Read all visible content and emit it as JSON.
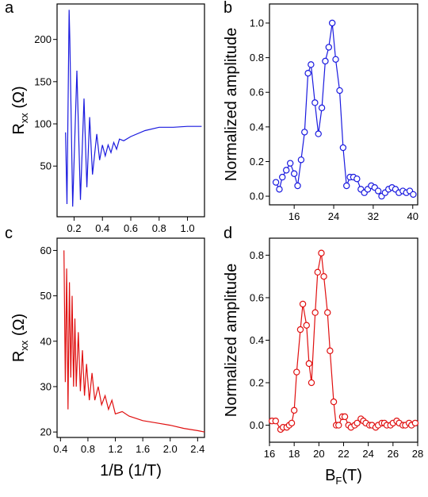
{
  "chart_data": [
    {
      "type": "line",
      "letter": "a",
      "ylabel": "R",
      "ylabel_sub": "xx",
      "ylabel_unit": " (Ω)",
      "color": "#1a1adf",
      "x": [
        0.14,
        0.15,
        0.165,
        0.17,
        0.19,
        0.22,
        0.245,
        0.27,
        0.29,
        0.31,
        0.33,
        0.36,
        0.38,
        0.4,
        0.42,
        0.44,
        0.46,
        0.48,
        0.5,
        0.52,
        0.55,
        0.6,
        0.7,
        0.8,
        0.9,
        1.0,
        1.1
      ],
      "values": [
        90,
        5,
        235,
        200,
        2,
        163,
        10,
        130,
        25,
        108,
        40,
        88,
        57,
        75,
        62,
        75,
        66,
        78,
        70,
        82,
        80,
        85,
        92,
        96,
        96,
        97,
        97
      ],
      "xlim": [
        0.08,
        1.12
      ],
      "ylim": [
        -10,
        242
      ],
      "xticks": [
        0.2,
        0.4,
        0.6,
        0.8,
        {
          "value": 1.0,
          "label": "1.0"
        }
      ],
      "yticks": [
        50,
        100,
        150,
        200
      ]
    },
    {
      "type": "line",
      "marker": "circle",
      "letter": "b",
      "ylabel": "Normalized amplitude",
      "color": "#1a1adf",
      "x": [
        12.3,
        13,
        13.6,
        14.4,
        15.2,
        16,
        16.7,
        17.4,
        18.1,
        18.8,
        19.4,
        20.2,
        20.9,
        21.6,
        22.3,
        23,
        23.7,
        24.4,
        25.2,
        25.9,
        26.6,
        27.3,
        28,
        28.7,
        29.5,
        30.2,
        30.9,
        31.6,
        32.3,
        33,
        33.7,
        34.4,
        35.1,
        35.8,
        36.5,
        37.2,
        38,
        38.7,
        39.4,
        40.1
      ],
      "values": [
        0.08,
        0.04,
        0.11,
        0.15,
        0.19,
        0.13,
        0.06,
        0.21,
        0.37,
        0.71,
        0.76,
        0.54,
        0.36,
        0.51,
        0.78,
        0.86,
        1.0,
        0.79,
        0.61,
        0.28,
        0.06,
        0.11,
        0.11,
        0.1,
        0.04,
        0.02,
        0.04,
        0.06,
        0.05,
        0.03,
        0.0,
        0.02,
        0.04,
        0.05,
        0.04,
        0.02,
        0.03,
        0.02,
        0.03,
        0.01
      ],
      "xlim": [
        11,
        41
      ],
      "ylim": [
        -0.05,
        1.11
      ],
      "xticks": [
        16,
        24,
        32,
        40
      ],
      "yticks": [
        {
          "value": 0.0,
          "label": "0.0"
        },
        0.2,
        0.4,
        0.6,
        0.8,
        {
          "value": 1.0,
          "label": "1.0"
        }
      ]
    },
    {
      "type": "line",
      "letter": "c",
      "ylabel": "R",
      "ylabel_sub": "xx",
      "ylabel_unit": " (Ω)",
      "xlabel": "1/B (1/T)",
      "color": "#e01010",
      "x": [
        0.45,
        0.47,
        0.49,
        0.51,
        0.53,
        0.55,
        0.57,
        0.59,
        0.61,
        0.63,
        0.66,
        0.69,
        0.72,
        0.75,
        0.78,
        0.82,
        0.86,
        0.9,
        0.95,
        1.0,
        1.05,
        1.1,
        1.15,
        1.2,
        1.3,
        1.4,
        1.6,
        1.8,
        2.0,
        2.2,
        2.4,
        2.5
      ],
      "values": [
        60,
        31,
        56,
        25,
        53,
        32,
        50,
        30,
        45,
        30,
        42,
        29,
        38,
        28,
        35,
        27,
        33,
        27,
        30,
        26,
        28,
        25,
        27,
        24,
        24.5,
        23.5,
        22.5,
        22,
        21.5,
        20.8,
        20.3,
        20
      ],
      "xlim": [
        0.35,
        2.5
      ],
      "ylim": [
        18.8,
        62.7
      ],
      "xticks": [
        0.4,
        0.8,
        1.2,
        1.6,
        {
          "value": 2.0,
          "label": "2.0"
        },
        2.4
      ],
      "yticks": [
        20,
        30,
        40,
        50,
        60
      ]
    },
    {
      "type": "line",
      "marker": "circle",
      "letter": "d",
      "ylabel": "Normalized amplitude",
      "xlabel": "B",
      "xlabel_sub": "F",
      "xlabel_unit": "(T)",
      "color": "#e01010",
      "x": [
        16.2,
        16.5,
        16.9,
        17.1,
        17.4,
        17.6,
        17.8,
        18.0,
        18.2,
        18.5,
        18.7,
        19.0,
        19.2,
        19.4,
        19.7,
        19.9,
        20.2,
        20.4,
        20.7,
        20.9,
        21.2,
        21.4,
        21.6,
        21.9,
        22.1,
        22.4,
        22.6,
        22.9,
        23.1,
        23.4,
        23.6,
        23.8,
        24.1,
        24.3,
        24.6,
        24.8,
        25.1,
        25.3,
        25.5,
        25.8,
        26.0,
        26.3,
        26.5,
        26.8,
        27.0,
        27.3,
        27.5,
        27.8
      ],
      "values": [
        0.02,
        0.02,
        -0.02,
        -0.01,
        -0.01,
        0.0,
        0.01,
        0.07,
        0.25,
        0.45,
        0.57,
        0.47,
        0.29,
        0.2,
        0.53,
        0.72,
        0.81,
        0.7,
        0.53,
        0.35,
        0.11,
        0.0,
        0.0,
        0.04,
        0.04,
        0.0,
        -0.01,
        0.0,
        0.01,
        0.03,
        0.02,
        0.01,
        0.0,
        0.0,
        -0.01,
        0.0,
        0.01,
        0.01,
        0.0,
        0.0,
        0.01,
        0.02,
        0.01,
        0.0,
        0.0,
        0.01,
        0.0,
        0.01
      ],
      "xlim": [
        16,
        28
      ],
      "ylim": [
        -0.08,
        0.88
      ],
      "xticks": [
        16,
        18,
        20,
        22,
        24,
        26,
        28
      ],
      "yticks": [
        {
          "value": 0.0,
          "label": "0.0"
        },
        0.2,
        0.4,
        0.6,
        0.8
      ]
    }
  ]
}
